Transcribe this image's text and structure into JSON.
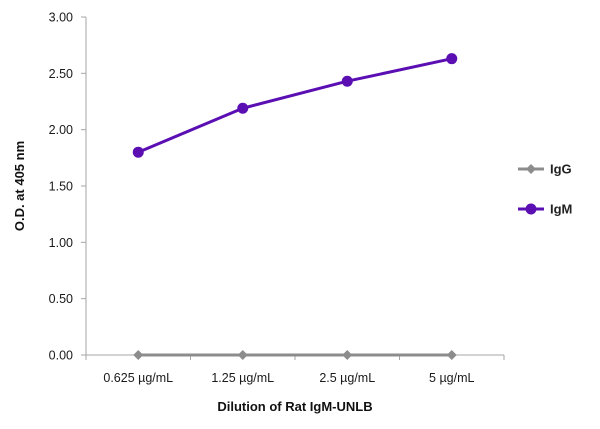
{
  "chart_data": {
    "type": "line",
    "title": "",
    "xlabel": "Dilution of Rat IgM-UNLB",
    "ylabel": "O.D. at 405 nm",
    "categories": [
      "0.625 µg/mL",
      "1.25 µg/mL",
      "2.5 µg/mL",
      "5 µg/mL"
    ],
    "ylim": [
      0,
      3
    ],
    "yticks": [
      "0.00",
      "0.50",
      "1.00",
      "1.50",
      "2.00",
      "2.50",
      "3.00"
    ],
    "grid": false,
    "legend_position": "right",
    "series": [
      {
        "name": "IgG",
        "values": [
          0.0,
          0.0,
          0.0,
          0.0
        ],
        "color": "#8c8c8c",
        "marker": "diamond"
      },
      {
        "name": "IgM",
        "values": [
          1.8,
          2.19,
          2.43,
          2.63
        ],
        "color": "#5b0fb3",
        "marker": "circle"
      }
    ]
  }
}
